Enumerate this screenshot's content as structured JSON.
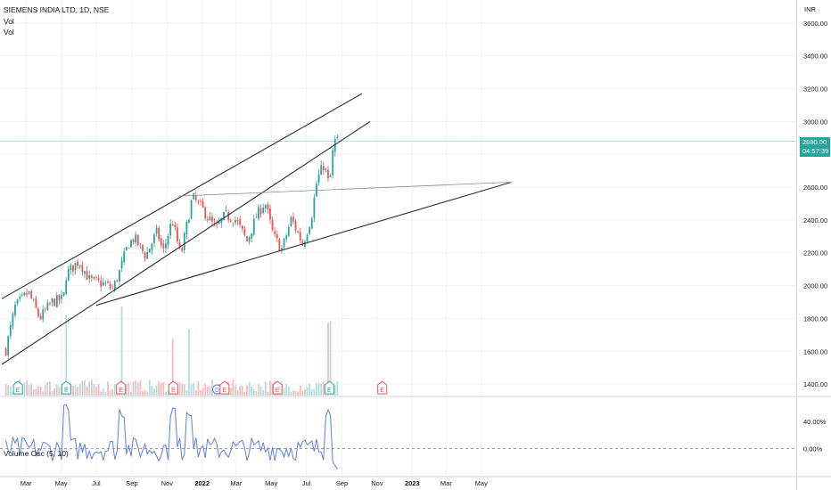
{
  "header": {
    "symbol": "SIEMENS INDIA LTD, 1D, NSE",
    "line2": "Vol",
    "line3": "Vol"
  },
  "currency": "INR",
  "last_price": {
    "value": "2880.00",
    "countdown": "04:57:39"
  },
  "colors": {
    "up": "#26a69a",
    "down": "#ef5350",
    "volume_up": "#b2dfdb",
    "volume_down": "#f8bbbd",
    "trendline": "#2a2e39",
    "oscillator": "#5b7fe0",
    "earnings_up": "#26a69a",
    "earnings_down": "#ef5350",
    "dividend": "#5b7fe0"
  },
  "chart_data": [
    {
      "type": "candlestick",
      "title": "",
      "x_axis": {
        "ticks": [
          "Mar",
          "May",
          "Jul",
          "Sep",
          "Nov",
          "2022",
          "Mar",
          "May",
          "Jul",
          "Sep",
          "Nov",
          "2023",
          "Mar",
          "May"
        ]
      },
      "y_axis": {
        "ticks": [
          1400,
          1600,
          1800,
          2000,
          2200,
          2400,
          2600,
          2800,
          3000,
          3200,
          3400,
          3600
        ],
        "tick_labels": [
          "1400.00",
          "1600.00",
          "1800.00",
          "2000.00",
          "2200.00",
          "2400.00",
          "2600.00",
          "2800.00",
          "3000.00",
          "3200.00",
          "3400.00",
          "3600.00"
        ],
        "range": [
          1330,
          3740
        ],
        "unit": "INR"
      },
      "price_path": [
        [
          "2021-01-25",
          1610
        ],
        [
          "2021-02-10",
          1870
        ],
        [
          "2021-03-05",
          1960
        ],
        [
          "2021-03-25",
          1800
        ],
        [
          "2021-04-15",
          1900
        ],
        [
          "2021-05-05",
          1920
        ],
        [
          "2021-05-10",
          2070
        ],
        [
          "2021-06-01",
          2150
        ],
        [
          "2021-06-20",
          2030
        ],
        [
          "2021-07-15",
          2010
        ],
        [
          "2021-07-30",
          1980
        ],
        [
          "2021-08-10",
          2080
        ],
        [
          "2021-08-25",
          2250
        ],
        [
          "2021-09-05",
          2290
        ],
        [
          "2021-09-25",
          2180
        ],
        [
          "2021-10-15",
          2330
        ],
        [
          "2021-10-25",
          2200
        ],
        [
          "2021-11-10",
          2400
        ],
        [
          "2021-11-25",
          2180
        ],
        [
          "2021-12-15",
          2540
        ],
        [
          "2022-01-05",
          2450
        ],
        [
          "2022-01-25",
          2340
        ],
        [
          "2022-02-10",
          2430
        ],
        [
          "2022-03-01",
          2400
        ],
        [
          "2022-03-20",
          2270
        ],
        [
          "2022-04-05",
          2420
        ],
        [
          "2022-04-20",
          2510
        ],
        [
          "2022-05-05",
          2300
        ],
        [
          "2022-05-20",
          2220
        ],
        [
          "2022-06-05",
          2410
        ],
        [
          "2022-06-25",
          2250
        ],
        [
          "2022-07-10",
          2420
        ],
        [
          "2022-07-20",
          2650
        ],
        [
          "2022-08-01",
          2740
        ],
        [
          "2022-08-10",
          2600
        ],
        [
          "2022-08-18",
          2880
        ],
        [
          "2022-08-24",
          2880
        ]
      ],
      "trendlines": [
        {
          "from": [
            "2021-01-18",
            1920
          ],
          "to": [
            "2022-10-06",
            3170
          ]
        },
        {
          "from": [
            "2021-01-18",
            1520
          ],
          "to": [
            "2022-10-20",
            3000
          ]
        },
        {
          "from": [
            "2021-07-01",
            1880
          ],
          "to": [
            "2023-06-22",
            2630
          ]
        },
        {
          "from": [
            "2021-11-20",
            2545
          ],
          "to": [
            "2023-06-22",
            2630
          ]
        }
      ],
      "horizontal_line": 2880,
      "event_markers": [
        {
          "date": "2021-02-15",
          "label": "E",
          "kind": "earnings_up"
        },
        {
          "date": "2021-05-10",
          "label": "E",
          "kind": "earnings_up"
        },
        {
          "date": "2021-08-13",
          "label": "E",
          "kind": "earnings_down"
        },
        {
          "date": "2021-11-12",
          "label": "E",
          "kind": "earnings_down"
        },
        {
          "date": "2022-01-27",
          "label": "D",
          "kind": "dividend"
        },
        {
          "date": "2022-02-09",
          "label": "E",
          "kind": "earnings_down"
        },
        {
          "date": "2022-05-12",
          "label": "E",
          "kind": "earnings_down"
        },
        {
          "date": "2022-08-10",
          "label": "E",
          "kind": "earnings_up"
        },
        {
          "date": "2022-11-10",
          "label": "E",
          "kind": "earnings_down"
        }
      ],
      "volume_spikes": [
        "2021-05-10",
        "2021-08-13",
        "2021-11-12",
        "2021-12-10",
        "2022-08-10"
      ]
    },
    {
      "type": "line",
      "title": "Volume Osc (5, 10)",
      "y_axis": {
        "ticks": [
          0,
          40
        ],
        "tick_labels": [
          "0.00%",
          "40.00%"
        ],
        "range": [
          -40,
          75
        ]
      },
      "zero_line": 0,
      "end_value": -30
    }
  ]
}
